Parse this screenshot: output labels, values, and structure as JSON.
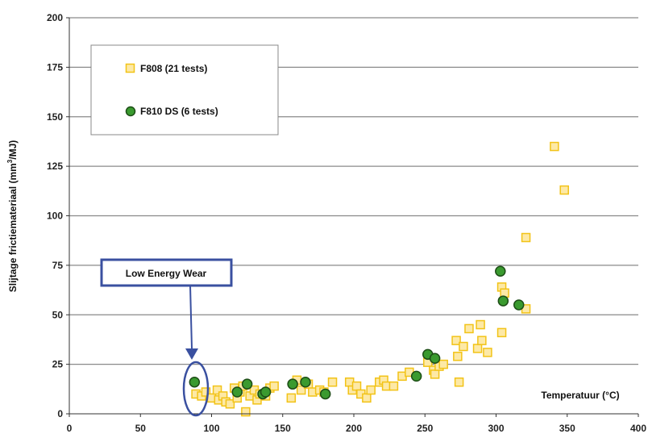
{
  "chart_data": {
    "type": "scatter",
    "title": "",
    "xlabel": "Temperatuur (°C)",
    "ylabel_main": "Slijtage frictiemateriaal (mm",
    "ylabel_sup": "3",
    "ylabel_end": "/MJ)",
    "xlim": [
      0,
      400
    ],
    "ylim": [
      0,
      200
    ],
    "xticks": [
      0,
      50,
      100,
      150,
      200,
      250,
      300,
      350,
      400
    ],
    "yticks": [
      0,
      25,
      50,
      75,
      100,
      125,
      150,
      175,
      200
    ],
    "grid": "horizontal",
    "legend_position": "top-left",
    "series": [
      {
        "name": "F808 (21 tests)",
        "marker": "square",
        "fill": "#fde9a6",
        "stroke": "#f2c317",
        "points": [
          [
            89,
            10
          ],
          [
            93,
            9
          ],
          [
            96,
            11
          ],
          [
            100,
            8
          ],
          [
            104,
            12
          ],
          [
            105,
            7
          ],
          [
            108,
            9
          ],
          [
            110,
            6
          ],
          [
            113,
            5
          ],
          [
            116,
            13
          ],
          [
            118,
            8
          ],
          [
            120,
            11
          ],
          [
            122,
            14
          ],
          [
            124,
            1
          ],
          [
            127,
            9
          ],
          [
            130,
            12
          ],
          [
            132,
            7
          ],
          [
            134,
            10
          ],
          [
            138,
            9
          ],
          [
            141,
            13
          ],
          [
            144,
            14
          ],
          [
            156,
            8
          ],
          [
            160,
            17
          ],
          [
            163,
            12
          ],
          [
            168,
            15
          ],
          [
            171,
            11
          ],
          [
            176,
            12
          ],
          [
            179,
            11
          ],
          [
            185,
            16
          ],
          [
            197,
            16
          ],
          [
            199,
            12
          ],
          [
            202,
            14
          ],
          [
            205,
            10
          ],
          [
            209,
            8
          ],
          [
            212,
            12
          ],
          [
            218,
            16
          ],
          [
            221,
            17
          ],
          [
            223,
            14
          ],
          [
            228,
            14
          ],
          [
            234,
            19
          ],
          [
            239,
            21
          ],
          [
            252,
            26
          ],
          [
            256,
            22
          ],
          [
            257,
            20
          ],
          [
            260,
            24
          ],
          [
            263,
            25
          ],
          [
            272,
            37
          ],
          [
            273,
            29
          ],
          [
            274,
            16
          ],
          [
            277,
            34
          ],
          [
            281,
            43
          ],
          [
            287,
            33
          ],
          [
            289,
            45
          ],
          [
            290,
            37
          ],
          [
            294,
            31
          ],
          [
            304,
            41
          ],
          [
            304,
            64
          ],
          [
            306,
            61
          ],
          [
            321,
            53
          ],
          [
            321,
            89
          ],
          [
            341,
            135
          ],
          [
            348,
            113
          ]
        ]
      },
      {
        "name": "F810 DS (6 tests)",
        "marker": "circle",
        "fill": "#3a9a2f",
        "stroke": "#1d4d16",
        "points": [
          [
            88,
            16
          ],
          [
            118,
            11
          ],
          [
            125,
            15
          ],
          [
            136,
            10
          ],
          [
            138,
            11
          ],
          [
            157,
            15
          ],
          [
            166,
            16
          ],
          [
            180,
            10
          ],
          [
            244,
            19
          ],
          [
            252,
            30
          ],
          [
            257,
            28
          ],
          [
            303,
            72
          ],
          [
            305,
            57
          ],
          [
            316,
            55
          ]
        ]
      }
    ],
    "annotation": {
      "text": "Low Energy Wear",
      "target": [
        88,
        13
      ]
    }
  }
}
